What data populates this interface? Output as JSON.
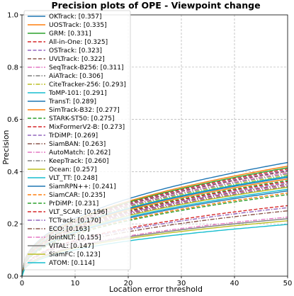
{
  "chart_data": {
    "type": "line",
    "title": "Precision plots of OPE - Viewpoint change",
    "xlabel": "Location error threshold",
    "ylabel": "Precision",
    "xlim": [
      0,
      50
    ],
    "ylim": [
      0,
      1
    ],
    "xticks": [
      "0",
      "10",
      "20",
      "30",
      "40",
      "50"
    ],
    "yticks": [
      "0.0",
      "0.2",
      "0.4",
      "0.6",
      "0.8",
      "1.0"
    ],
    "grid": true,
    "legend_position": "upper-left",
    "series": [
      {
        "name": "OKTrack: [0.357]",
        "color": "#1f77b4",
        "dash": "solid",
        "y50": 0.435
      },
      {
        "name": "UOSTrack: [0.335]",
        "color": "#ff7f0e",
        "dash": "solid",
        "y50": 0.421
      },
      {
        "name": "GRM: [0.331]",
        "color": "#2ca02c",
        "dash": "solid",
        "y50": 0.415
      },
      {
        "name": "All-in-One: [0.325]",
        "color": "#d62728",
        "dash": "dashed",
        "y50": 0.41
      },
      {
        "name": "OSTrack: [0.323]",
        "color": "#9467bd",
        "dash": "dashed",
        "y50": 0.405
      },
      {
        "name": "UVLTrack: [0.322]",
        "color": "#8c564b",
        "dash": "dashed",
        "y50": 0.402
      },
      {
        "name": "SeqTrack-B256: [0.311]",
        "color": "#e377c2",
        "dash": "dashdot",
        "y50": 0.397
      },
      {
        "name": "AiATrack: [0.306]",
        "color": "#7f7f7f",
        "dash": "dashdot",
        "y50": 0.392
      },
      {
        "name": "CiteTracker-256: [0.293]",
        "color": "#bcbd22",
        "dash": "dashdot",
        "y50": 0.386
      },
      {
        "name": "ToMP-101: [0.291]",
        "color": "#17becf",
        "dash": "solid",
        "y50": 0.382
      },
      {
        "name": "TransT: [0.289]",
        "color": "#1f77b4",
        "dash": "solid",
        "y50": 0.378
      },
      {
        "name": "SimTrack-B32: [0.277]",
        "color": "#ff7f0e",
        "dash": "solid",
        "y50": 0.372
      },
      {
        "name": "STARK-ST50: [0.275]",
        "color": "#2ca02c",
        "dash": "dashed",
        "y50": 0.366
      },
      {
        "name": "MixFormerV2-B: [0.273]",
        "color": "#d62728",
        "dash": "dashed",
        "y50": 0.362
      },
      {
        "name": "TrDiMP: [0.269]",
        "color": "#9467bd",
        "dash": "dashed",
        "y50": 0.357
      },
      {
        "name": "SiamBAN: [0.263]",
        "color": "#8c564b",
        "dash": "dashdot",
        "y50": 0.352
      },
      {
        "name": "AutoMatch: [0.262]",
        "color": "#e377c2",
        "dash": "dashdot",
        "y50": 0.348
      },
      {
        "name": "KeepTrack: [0.260]",
        "color": "#7f7f7f",
        "dash": "dashdot",
        "y50": 0.344
      },
      {
        "name": "Ocean: [0.257]",
        "color": "#bcbd22",
        "dash": "solid",
        "y50": 0.34
      },
      {
        "name": "VLT_TT: [0.248]",
        "color": "#17becf",
        "dash": "solid",
        "y50": 0.332
      },
      {
        "name": "SiamRPN++: [0.241]",
        "color": "#1f77b4",
        "dash": "solid",
        "y50": 0.326
      },
      {
        "name": "SiamCAR: [0.235]",
        "color": "#ff7f0e",
        "dash": "dashed",
        "y50": 0.318
      },
      {
        "name": "PrDiMP: [0.231]",
        "color": "#2ca02c",
        "dash": "dashed",
        "y50": 0.312
      },
      {
        "name": "VLT_SCAR: [0.196]",
        "color": "#d62728",
        "dash": "dashed",
        "y50": 0.27
      },
      {
        "name": "TCTrack: [0.170]",
        "color": "#9467bd",
        "dash": "dashdot",
        "y50": 0.262
      },
      {
        "name": "ECO: [0.163]",
        "color": "#8c564b",
        "dash": "dashdot",
        "y50": 0.25
      },
      {
        "name": "JointNLT: [0.155]",
        "color": "#e377c2",
        "dash": "dashdot",
        "y50": 0.226
      },
      {
        "name": "VITAL: [0.147]",
        "color": "#7f7f7f",
        "dash": "solid",
        "y50": 0.22
      },
      {
        "name": "SiamFC: [0.123]",
        "color": "#bcbd22",
        "dash": "solid",
        "y50": 0.212
      },
      {
        "name": "ATOM: [0.114]",
        "color": "#17becf",
        "dash": "solid",
        "y50": 0.198
      }
    ]
  }
}
